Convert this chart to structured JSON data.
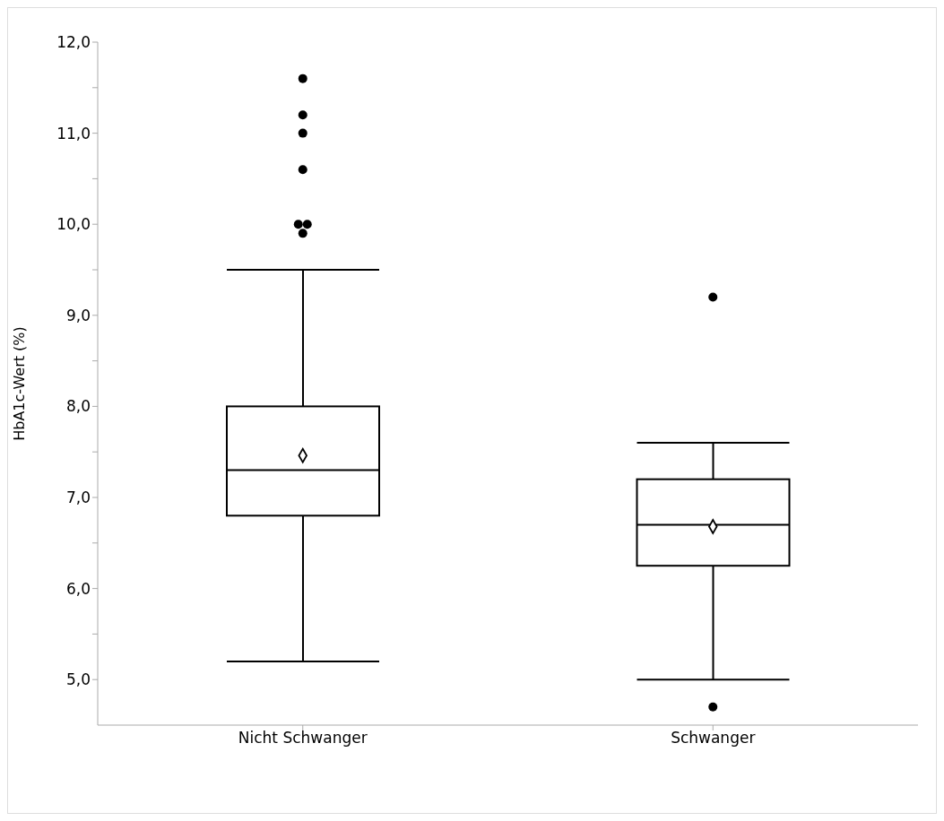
{
  "chart_data": {
    "type": "box",
    "ylabel": "HbA1c-Wert (%)",
    "categories": [
      "Nicht Schwanger",
      "Schwanger"
    ],
    "color": "#000000",
    "boxes": [
      {
        "low": 5.2,
        "q1": 6.8,
        "median": 7.3,
        "q3": 8.0,
        "high": 9.5,
        "mean": 7.46,
        "outliers": [
          11.6,
          11.2,
          11.0,
          10.6,
          10.0,
          10.0,
          9.9
        ]
      },
      {
        "low": 5.0,
        "q1": 6.25,
        "median": 6.7,
        "q3": 7.2,
        "high": 7.6,
        "mean": 6.68,
        "outliers": [
          9.2,
          4.7
        ]
      }
    ],
    "ylim": [
      4.5,
      12.0
    ],
    "yticks": [
      {
        "value": 5,
        "label": "5,0"
      },
      {
        "value": 5.5,
        "label": null
      },
      {
        "value": 6,
        "label": "6,0"
      },
      {
        "value": 6.5,
        "label": null
      },
      {
        "value": 7,
        "label": "7,0"
      },
      {
        "value": 7.5,
        "label": null
      },
      {
        "value": 8,
        "label": "8,0"
      },
      {
        "value": 8.5,
        "label": null
      },
      {
        "value": 9,
        "label": "9,0"
      },
      {
        "value": 9.5,
        "label": null
      },
      {
        "value": 10,
        "label": "10,0"
      },
      {
        "value": 10.5,
        "label": null
      },
      {
        "value": 11,
        "label": "11,0"
      },
      {
        "value": 11.5,
        "label": null
      },
      {
        "value": 12,
        "label": "12,0"
      }
    ],
    "grid": false,
    "legend": false
  }
}
